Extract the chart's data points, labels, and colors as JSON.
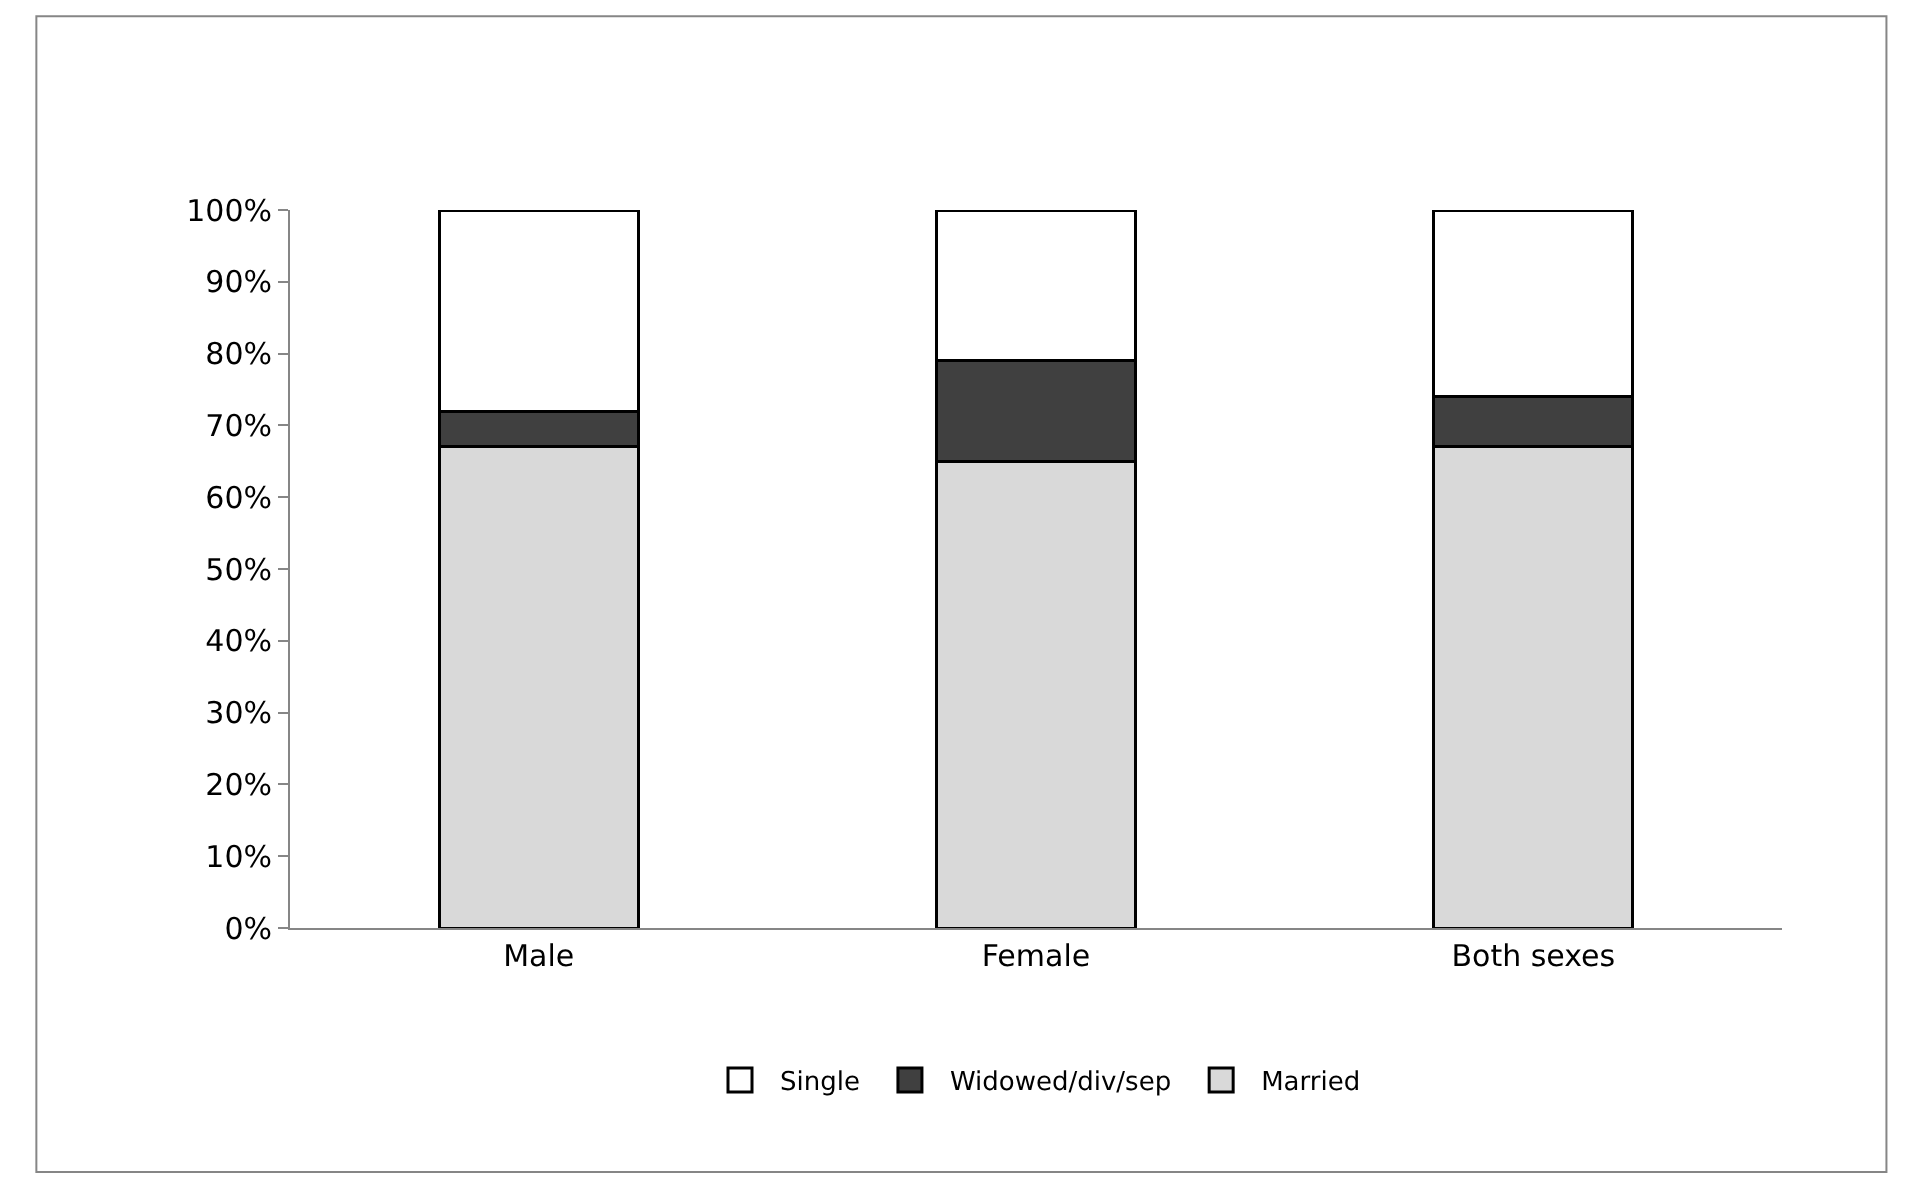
{
  "chart_data": {
    "type": "bar",
    "stacked": true,
    "categories": [
      "Male",
      "Female",
      "Both sexes"
    ],
    "series": [
      {
        "name": "Married",
        "color": "#d9d9d9",
        "values": [
          67,
          65,
          67
        ]
      },
      {
        "name": "Widowed/div/sep",
        "color": "#404040",
        "values": [
          5,
          14,
          7
        ]
      },
      {
        "name": "Single",
        "color": "#ffffff",
        "values": [
          28,
          21,
          26
        ]
      }
    ],
    "ylim": [
      0,
      100
    ],
    "yticks": [
      {
        "value": 0,
        "label": "0%"
      },
      {
        "value": 10,
        "label": "10%"
      },
      {
        "value": 20,
        "label": "20%"
      },
      {
        "value": 30,
        "label": "30%"
      },
      {
        "value": 40,
        "label": "40%"
      },
      {
        "value": 50,
        "label": "50%"
      },
      {
        "value": 60,
        "label": "60%"
      },
      {
        "value": 70,
        "label": "70%"
      },
      {
        "value": 80,
        "label": "80%"
      },
      {
        "value": 90,
        "label": "90%"
      },
      {
        "value": 100,
        "label": "100%"
      }
    ],
    "legend": "bottom"
  }
}
